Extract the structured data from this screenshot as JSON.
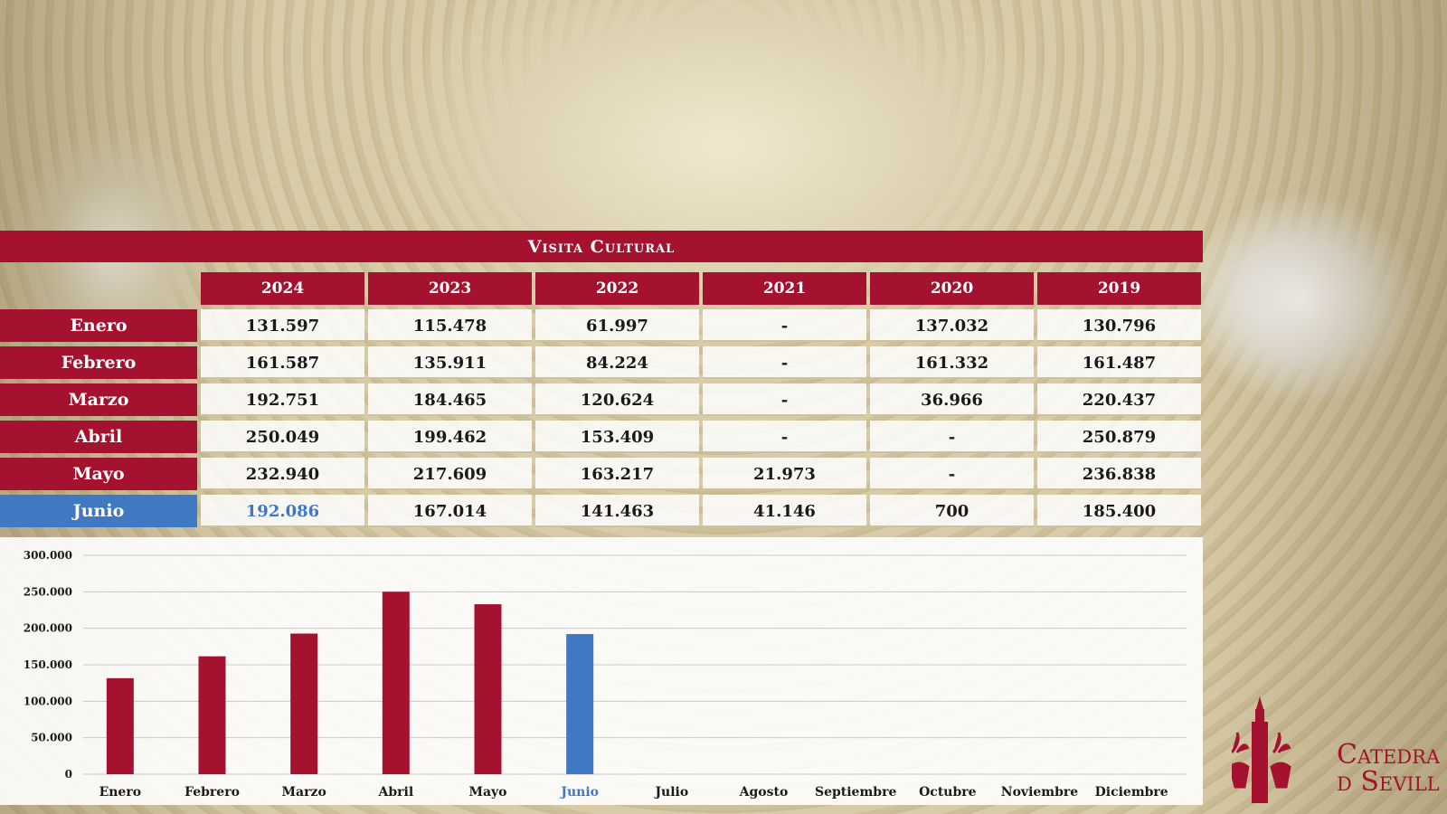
{
  "title": "Visita Cultural",
  "years": [
    "2024",
    "2023",
    "2022",
    "2021",
    "2020",
    "2019"
  ],
  "rows": [
    {
      "month": "Enero",
      "values": [
        "131.597",
        "115.478",
        "61.997",
        "-",
        "137.032",
        "130.796"
      ]
    },
    {
      "month": "Febrero",
      "values": [
        "161.587",
        "135.911",
        "84.224",
        "-",
        "161.332",
        "161.487"
      ]
    },
    {
      "month": "Marzo",
      "values": [
        "192.751",
        "184.465",
        "120.624",
        "-",
        "36.966",
        "220.437"
      ]
    },
    {
      "month": "Abril",
      "values": [
        "250.049",
        "199.462",
        "153.409",
        "-",
        "-",
        "250.879"
      ]
    },
    {
      "month": "Mayo",
      "values": [
        "232.940",
        "217.609",
        "163.217",
        "21.973",
        "-",
        "236.838"
      ]
    },
    {
      "month": "Junio",
      "values": [
        "192.086",
        "167.014",
        "141.463",
        "41.146",
        "700",
        "185.400"
      ]
    }
  ],
  "highlight_month": "Junio",
  "colors": {
    "primary": "#a51230",
    "highlight": "#3f78c3"
  },
  "chart_data": {
    "type": "bar",
    "categories": [
      "Enero",
      "Febrero",
      "Marzo",
      "Abril",
      "Mayo",
      "Junio",
      "Julio",
      "Agosto",
      "Septiembre",
      "Octubre",
      "Noviembre",
      "Diciembre"
    ],
    "values": [
      131597,
      161587,
      192751,
      250049,
      232940,
      192086,
      null,
      null,
      null,
      null,
      null,
      null
    ],
    "ylim": [
      0,
      300000
    ],
    "yticks": [
      "0",
      "50.000",
      "100.000",
      "150.000",
      "200.000",
      "250.000",
      "300.000"
    ],
    "highlight_index": 5,
    "grid": true
  },
  "logo": {
    "text_line1": "Catedra",
    "text_line2": "d Sevill"
  }
}
